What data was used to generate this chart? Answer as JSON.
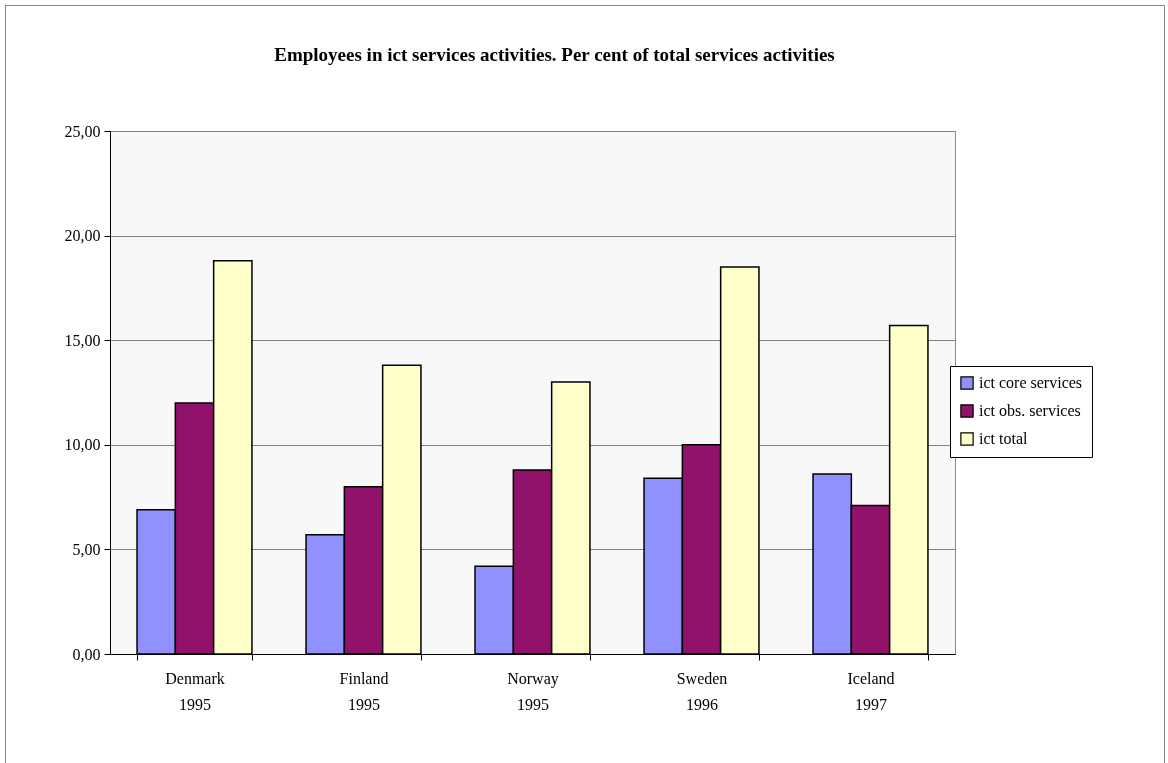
{
  "chart_data": {
    "type": "bar",
    "title": "Employees in ict services activities. Per cent of total services activities",
    "categories": [
      "Denmark\n1995",
      "Finland\n1995",
      "Norway\n1995",
      "Sweden\n1996",
      "Iceland\n1997"
    ],
    "series": [
      {
        "name": "ict core services",
        "color": "#9090ff",
        "values": [
          6.9,
          5.7,
          4.2,
          8.4,
          8.6
        ]
      },
      {
        "name": "ict obs. services",
        "color": "#90126a",
        "values": [
          12.0,
          8.0,
          8.8,
          10.0,
          7.1
        ]
      },
      {
        "name": "ict total",
        "color": "#ffffcc",
        "values": [
          18.8,
          13.8,
          13.0,
          18.5,
          15.7
        ]
      }
    ],
    "ylim": [
      0,
      25
    ],
    "yticks": [
      {
        "value": 0,
        "label": "0,00"
      },
      {
        "value": 5,
        "label": "5,00"
      },
      {
        "value": 10,
        "label": "10,00"
      },
      {
        "value": 15,
        "label": "15,00"
      },
      {
        "value": 20,
        "label": "20,00"
      },
      {
        "value": 25,
        "label": "25,00"
      }
    ],
    "grid": "y",
    "legend": "right"
  }
}
